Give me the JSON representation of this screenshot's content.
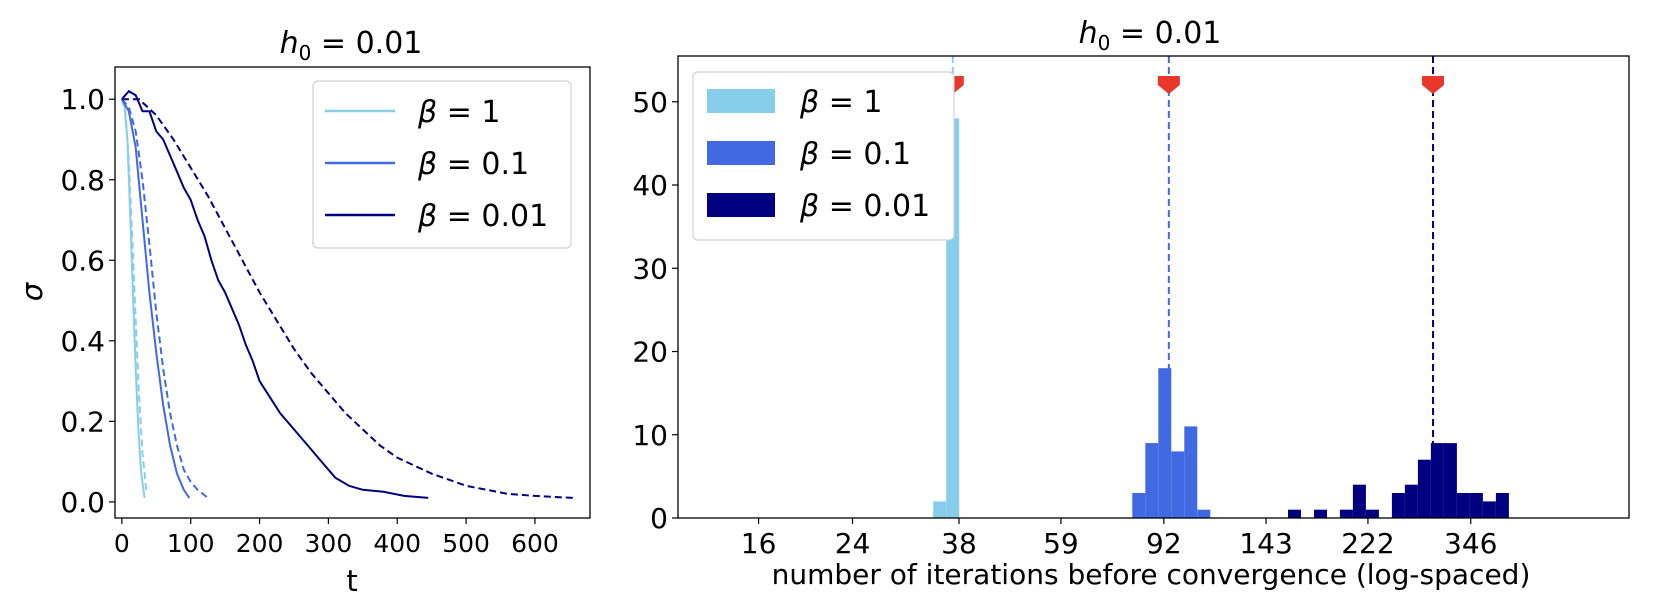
{
  "chart_data": [
    {
      "type": "line",
      "title": "h₀ = 0.01",
      "title_main": "h",
      "title_sub": "0",
      "title_rest": " = 0.01",
      "xlabel": "t",
      "ylabel": "σ",
      "xlim": [
        -10,
        680
      ],
      "ylim": [
        -0.04,
        1.08
      ],
      "xticks": [
        "0",
        "100",
        "200",
        "300",
        "400",
        "500",
        "600"
      ],
      "xtick_values": [
        0,
        100,
        200,
        300,
        400,
        500,
        600
      ],
      "yticks": [
        "0.0",
        "0.2",
        "0.4",
        "0.6",
        "0.8",
        "1.0"
      ],
      "ytick_values": [
        0.0,
        0.2,
        0.4,
        0.6,
        0.8,
        1.0
      ],
      "legend_position": "top-right",
      "series": [
        {
          "name": "β = 1",
          "color": "#87ceeb",
          "style": "solid",
          "points": [
            [
              0,
              1.0
            ],
            [
              4,
              0.98
            ],
            [
              8,
              0.9
            ],
            [
              12,
              0.72
            ],
            [
              16,
              0.52
            ],
            [
              20,
              0.33
            ],
            [
              24,
              0.18
            ],
            [
              28,
              0.07
            ],
            [
              33,
              0.01
            ]
          ]
        },
        {
          "name": "β = 1 (theory)",
          "color": "#87ceeb",
          "style": "dashed",
          "legend": false,
          "points": [
            [
              0,
              1.0
            ],
            [
              5,
              0.97
            ],
            [
              10,
              0.85
            ],
            [
              15,
              0.66
            ],
            [
              20,
              0.45
            ],
            [
              25,
              0.26
            ],
            [
              30,
              0.12
            ],
            [
              36,
              0.02
            ]
          ]
        },
        {
          "name": "β = 0.1",
          "color": "#4169e1",
          "style": "solid",
          "points": [
            [
              0,
              1.0
            ],
            [
              10,
              0.97
            ],
            [
              20,
              0.88
            ],
            [
              30,
              0.7
            ],
            [
              40,
              0.52
            ],
            [
              50,
              0.37
            ],
            [
              60,
              0.24
            ],
            [
              70,
              0.14
            ],
            [
              80,
              0.07
            ],
            [
              90,
              0.03
            ],
            [
              98,
              0.01
            ]
          ]
        },
        {
          "name": "β = 0.1 (theory)",
          "color": "#4169e1",
          "style": "dashed",
          "legend": false,
          "points": [
            [
              0,
              1.0
            ],
            [
              10,
              0.98
            ],
            [
              20,
              0.92
            ],
            [
              30,
              0.8
            ],
            [
              40,
              0.64
            ],
            [
              50,
              0.47
            ],
            [
              60,
              0.33
            ],
            [
              70,
              0.22
            ],
            [
              80,
              0.14
            ],
            [
              90,
              0.08
            ],
            [
              100,
              0.05
            ],
            [
              110,
              0.03
            ],
            [
              125,
              0.01
            ]
          ]
        },
        {
          "name": "β = 0.01",
          "color": "#000080",
          "style": "solid",
          "points": [
            [
              0,
              1.0
            ],
            [
              10,
              1.02
            ],
            [
              20,
              1.01
            ],
            [
              30,
              0.97
            ],
            [
              40,
              0.97
            ],
            [
              50,
              0.92
            ],
            [
              60,
              0.9
            ],
            [
              70,
              0.86
            ],
            [
              80,
              0.82
            ],
            [
              90,
              0.78
            ],
            [
              100,
              0.75
            ],
            [
              110,
              0.7
            ],
            [
              120,
              0.66
            ],
            [
              130,
              0.6
            ],
            [
              140,
              0.55
            ],
            [
              150,
              0.52
            ],
            [
              160,
              0.48
            ],
            [
              170,
              0.44
            ],
            [
              180,
              0.39
            ],
            [
              190,
              0.35
            ],
            [
              200,
              0.3
            ],
            [
              215,
              0.26
            ],
            [
              230,
              0.22
            ],
            [
              250,
              0.18
            ],
            [
              270,
              0.14
            ],
            [
              290,
              0.1
            ],
            [
              310,
              0.06
            ],
            [
              330,
              0.04
            ],
            [
              350,
              0.03
            ],
            [
              380,
              0.025
            ],
            [
              410,
              0.015
            ],
            [
              445,
              0.01
            ]
          ]
        },
        {
          "name": "β = 0.01 (theory)",
          "color": "#000080",
          "style": "dashed",
          "legend": false,
          "points": [
            [
              0,
              1.0
            ],
            [
              25,
              1.0
            ],
            [
              50,
              0.96
            ],
            [
              75,
              0.9
            ],
            [
              100,
              0.83
            ],
            [
              125,
              0.76
            ],
            [
              150,
              0.68
            ],
            [
              175,
              0.6
            ],
            [
              200,
              0.52
            ],
            [
              225,
              0.45
            ],
            [
              250,
              0.38
            ],
            [
              275,
              0.32
            ],
            [
              300,
              0.27
            ],
            [
              325,
              0.22
            ],
            [
              350,
              0.18
            ],
            [
              375,
              0.14
            ],
            [
              400,
              0.11
            ],
            [
              425,
              0.09
            ],
            [
              450,
              0.07
            ],
            [
              475,
              0.055
            ],
            [
              500,
              0.04
            ],
            [
              530,
              0.03
            ],
            [
              560,
              0.02
            ],
            [
              600,
              0.015
            ],
            [
              655,
              0.01
            ]
          ]
        }
      ]
    },
    {
      "type": "bar",
      "title": "h₀ = 0.01",
      "title_main": "h",
      "title_sub": "0",
      "title_rest": " = 0.01",
      "xlabel": "number of iterations before convergence (log-spaced)",
      "ylabel": "",
      "ylim": [
        0,
        55.5
      ],
      "xscale": "log",
      "xlim": [
        11.3,
        685
      ],
      "xticks": [
        "16",
        "24",
        "38",
        "59",
        "92",
        "143",
        "222",
        "346"
      ],
      "xtick_values": [
        16,
        24,
        38,
        59,
        92,
        143,
        222,
        346
      ],
      "yticks": [
        "0",
        "10",
        "20",
        "30",
        "40",
        "50"
      ],
      "ytick_values": [
        0,
        10,
        20,
        30,
        40,
        50
      ],
      "bin_ratio": 1.0577,
      "legend_position": "top-left",
      "series": [
        {
          "name": "β = 1",
          "color": "#87ceeb",
          "bin_starts": [
            34.0,
            35.96
          ],
          "counts": [
            2,
            48
          ],
          "mean": 37.0
        },
        {
          "name": "β = 0.1",
          "color": "#4169e1",
          "bin_starts": [
            80.3,
            84.93,
            89.83,
            95.01,
            100.49,
            106.29,
            112.42
          ],
          "counts": [
            3,
            9,
            18,
            8,
            11,
            1,
            0
          ],
          "mean": 94.0
        },
        {
          "name": "β = 0.01",
          "color": "#000080",
          "bin_starts": [
            157.2,
            166.27,
            175.86,
            186.0,
            196.73,
            208.08,
            220.08,
            232.78,
            246.21,
            260.41,
            275.43,
            291.32,
            308.13,
            325.9,
            344.7,
            364.59,
            385.62,
            407.87
          ],
          "counts": [
            1,
            0,
            1,
            0,
            1,
            4,
            1,
            0,
            3,
            4,
            7,
            9,
            9,
            3,
            3,
            2,
            3,
            0
          ],
          "mean": 294.0
        }
      ]
    }
  ]
}
